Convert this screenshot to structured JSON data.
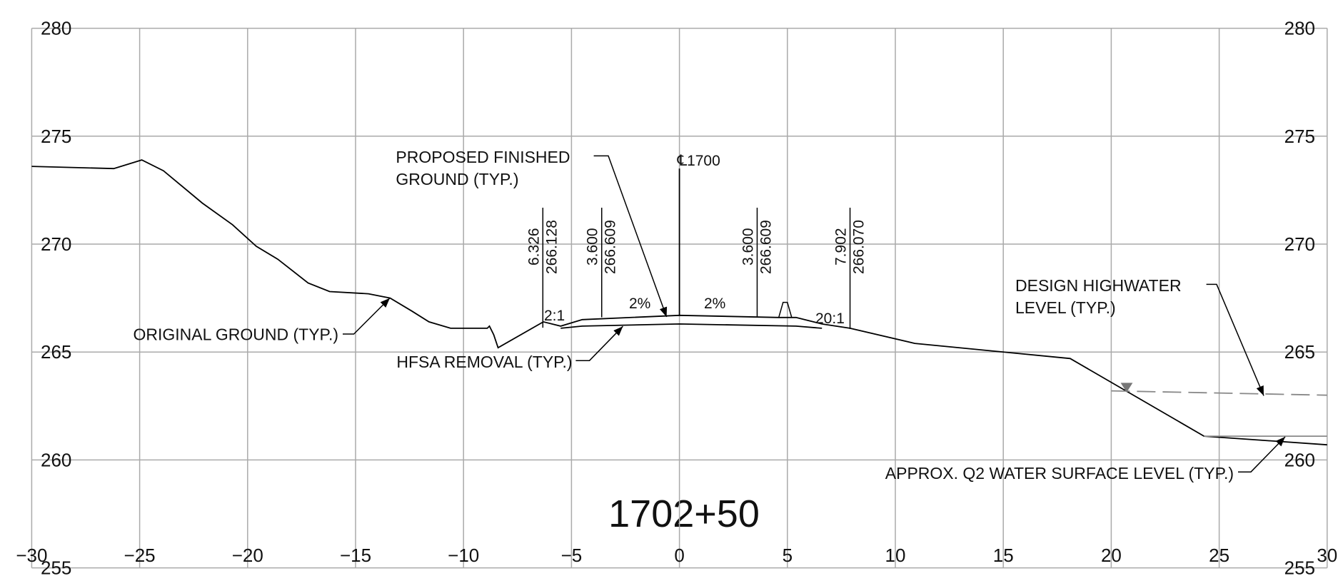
{
  "chart_data": {
    "type": "line",
    "title": "1702+50",
    "xlim": [
      -30,
      30
    ],
    "xticks": [
      {
        "value": -30,
        "label": "−30"
      },
      {
        "value": -25,
        "label": "−25"
      },
      {
        "value": -20,
        "label": "−20"
      },
      {
        "value": -15,
        "label": "−15"
      },
      {
        "value": -10,
        "label": "−10"
      },
      {
        "value": -5,
        "label": "−5"
      },
      0,
      5,
      10,
      15,
      20,
      25,
      30
    ],
    "ylim": [
      255,
      280
    ],
    "yticks": [
      255,
      260,
      265,
      270,
      275,
      280
    ],
    "grid": true,
    "series": [
      {
        "color": "#000000",
        "dashed": false,
        "x": [
          -30,
          -26.2,
          -24.9,
          -23.9,
          -22.1,
          -20.7,
          -19.6,
          -18.6,
          -17.2,
          -16.2,
          -14.4,
          -13.4,
          -12.4,
          -11.6,
          -10.6,
          -8.9,
          -8.8,
          -8.6,
          -8.4,
          -6.3,
          null,
          7.9,
          10.9,
          18.1,
          24.3,
          30
        ],
        "values": [
          273.6,
          273.5,
          273.9,
          273.4,
          271.9,
          270.9,
          269.9,
          269.3,
          268.2,
          267.8,
          267.7,
          267.5,
          266.9,
          266.4,
          266.1,
          266.1,
          266.2,
          265.8,
          265.2,
          266.4,
          null,
          266.1,
          265.4,
          264.7,
          261.1,
          260.7
        ]
      },
      {
        "color": "#000000",
        "dashed": false,
        "x": [
          -6.3,
          -5.5,
          -4.5,
          0,
          4.6,
          5.4,
          6.6,
          7.9
        ],
        "values": [
          266.4,
          266.2,
          266.5,
          266.7,
          266.6,
          266.6,
          266.3,
          266.1
        ]
      },
      {
        "color": "#000000",
        "dashed": false,
        "x": [
          -5.5,
          -4.5,
          0,
          5.4,
          6.6
        ],
        "values": [
          266.1,
          266.2,
          266.3,
          266.2,
          266.1
        ]
      },
      {
        "color": "#888888",
        "dashed": true,
        "x": [
          20.0,
          30
        ],
        "values": [
          263.2,
          263.0
        ]
      },
      {
        "color": "#888888",
        "dashed": false,
        "x": [
          24.3,
          30
        ],
        "values": [
          261.1,
          261.1
        ]
      }
    ],
    "centerline": {
      "label": "℄1700",
      "x": 0,
      "bottom": 266.7,
      "top": 273.5
    },
    "offsets": [
      {
        "offset": {
          "value": -6.326,
          "label": "6.326"
        },
        "elevation": 266.128
      },
      {
        "offset": {
          "value": -3.6,
          "label": "3.600"
        },
        "elevation": 266.609
      },
      {
        "offset": {
          "value": 3.6,
          "label": "3.600"
        },
        "elevation": 266.609
      },
      {
        "offset": 7.902,
        "elevation": {
          "value": 266.07,
          "label": "266.070"
        }
      }
    ],
    "slope_labels": [
      "2:1",
      "2%",
      "2%",
      "20:1"
    ],
    "annotations": [
      {
        "lines": [
          "PROPOSED FINISHED",
          "GROUND (TYP.)"
        ]
      },
      {
        "lines": [
          "ORIGINAL GROUND (TYP.)"
        ]
      },
      {
        "lines": [
          "HFSA REMOVAL (TYP.)"
        ]
      },
      {
        "lines": [
          "DESIGN HIGHWATER",
          "LEVEL (TYP.)"
        ]
      },
      {
        "lines": [
          "APPROX. Q2 WATER SURFACE LEVEL (TYP.)"
        ]
      }
    ]
  }
}
